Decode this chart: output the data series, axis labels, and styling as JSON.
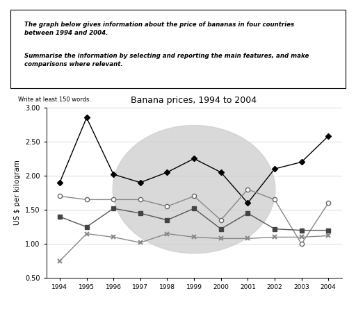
{
  "title": "Banana prices, 1994 to 2004",
  "ylabel": "US $ per kilogram",
  "years": [
    1994,
    1995,
    1996,
    1997,
    1998,
    1999,
    2000,
    2001,
    2002,
    2003,
    2004
  ],
  "japan": [
    1.9,
    2.85,
    2.02,
    1.9,
    2.05,
    2.25,
    2.05,
    1.6,
    2.1,
    2.2,
    2.58
  ],
  "france": [
    1.7,
    1.65,
    1.65,
    1.65,
    1.55,
    1.7,
    1.35,
    1.8,
    1.65,
    1.0,
    1.6
  ],
  "germany": [
    1.4,
    1.25,
    1.52,
    1.45,
    1.35,
    1.52,
    1.22,
    1.45,
    1.22,
    1.2,
    1.2
  ],
  "usa": [
    0.75,
    1.15,
    1.1,
    1.02,
    1.15,
    1.1,
    1.08,
    1.08,
    1.1,
    1.1,
    1.12
  ],
  "ylim": [
    0.5,
    3.0
  ],
  "yticks": [
    0.5,
    1.0,
    1.5,
    2.0,
    2.5,
    3.0
  ],
  "text_line1": "The graph below gives information about the price of bananas in four countries\nbetween 1994 and 2004.",
  "text_line2": "Summarise the information by selecting and reporting the main features, and make\ncomparisons where relevant.",
  "footnote": "Write at least 150 words.",
  "watermark_color": "#d0d0d0"
}
